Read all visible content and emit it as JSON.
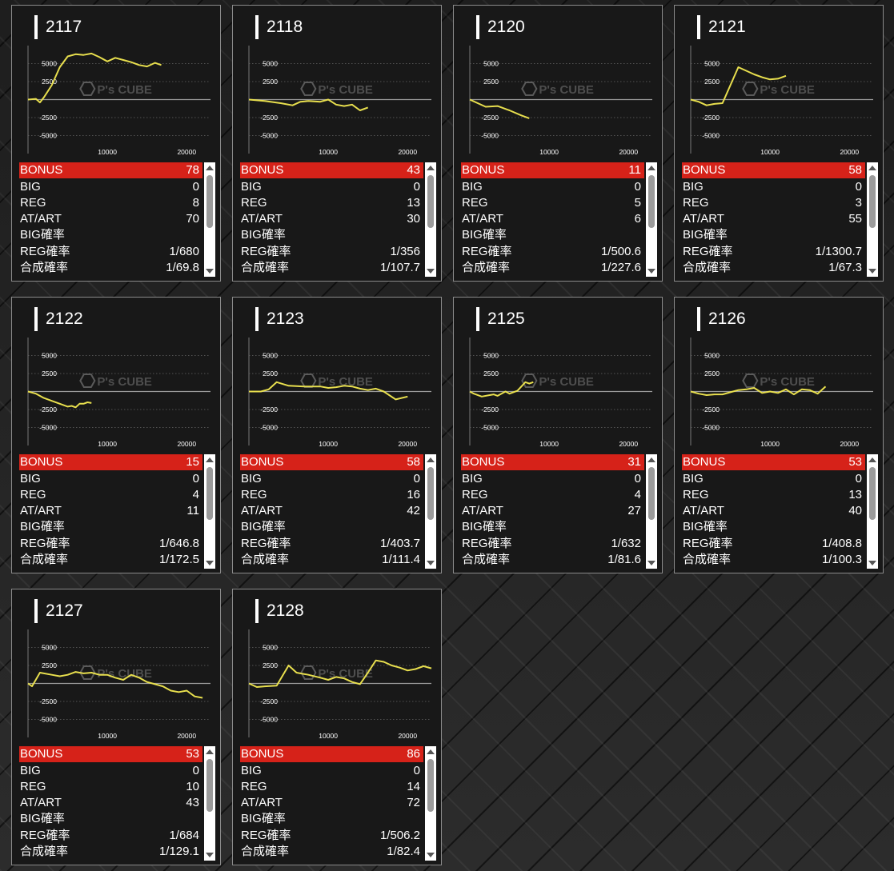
{
  "colors": {
    "line": "#e8df4e",
    "bonus_bg": "#d62219"
  },
  "stat_labels": {
    "bonus": "BONUS",
    "big": "BIG",
    "reg": "REG",
    "at": "AT/ART",
    "big_rate": "BIG確率",
    "reg_rate": "REG確率",
    "total_rate": "合成確率"
  },
  "machines": [
    {
      "id": "2117",
      "bonus": "78",
      "big": "0",
      "reg": "8",
      "at": "70",
      "big_rate": "",
      "reg_rate": "1/680",
      "total_rate": "1/69.8"
    },
    {
      "id": "2118",
      "bonus": "43",
      "big": "0",
      "reg": "13",
      "at": "30",
      "big_rate": "",
      "reg_rate": "1/356",
      "total_rate": "1/107.7"
    },
    {
      "id": "2120",
      "bonus": "11",
      "big": "0",
      "reg": "5",
      "at": "6",
      "big_rate": "",
      "reg_rate": "1/500.6",
      "total_rate": "1/227.6"
    },
    {
      "id": "2121",
      "bonus": "58",
      "big": "0",
      "reg": "3",
      "at": "55",
      "big_rate": "",
      "reg_rate": "1/1300.7",
      "total_rate": "1/67.3"
    },
    {
      "id": "2122",
      "bonus": "15",
      "big": "0",
      "reg": "4",
      "at": "11",
      "big_rate": "",
      "reg_rate": "1/646.8",
      "total_rate": "1/172.5"
    },
    {
      "id": "2123",
      "bonus": "58",
      "big": "0",
      "reg": "16",
      "at": "42",
      "big_rate": "",
      "reg_rate": "1/403.7",
      "total_rate": "1/111.4"
    },
    {
      "id": "2125",
      "bonus": "31",
      "big": "0",
      "reg": "4",
      "at": "27",
      "big_rate": "",
      "reg_rate": "1/632",
      "total_rate": "1/81.6"
    },
    {
      "id": "2126",
      "bonus": "53",
      "big": "0",
      "reg": "13",
      "at": "40",
      "big_rate": "",
      "reg_rate": "1/408.8",
      "total_rate": "1/100.3"
    },
    {
      "id": "2127",
      "bonus": "53",
      "big": "0",
      "reg": "10",
      "at": "43",
      "big_rate": "",
      "reg_rate": "1/684",
      "total_rate": "1/129.1"
    },
    {
      "id": "2128",
      "bonus": "86",
      "big": "0",
      "reg": "14",
      "at": "72",
      "big_rate": "",
      "reg_rate": "1/506.2",
      "total_rate": "1/82.4"
    }
  ],
  "chart_data": [
    {
      "type": "line",
      "title": "2117",
      "xlim": [
        0,
        23000
      ],
      "ylim": [
        -7500,
        7500
      ],
      "yticks": [
        5000,
        2500,
        -2500,
        -5000
      ],
      "xticks": [
        10000,
        20000
      ],
      "watermark": "P's CUBE",
      "x": [
        0,
        1000,
        1500,
        2000,
        3000,
        4000,
        5000,
        6000,
        7000,
        8000,
        9000,
        10000,
        11000,
        12000,
        13000,
        14000,
        15000,
        16000,
        16800
      ],
      "y": [
        0,
        100,
        -400,
        300,
        2000,
        4500,
        6000,
        6300,
        6200,
        6400,
        5900,
        5300,
        5800,
        5500,
        5200,
        4800,
        4600,
        5100,
        4800
      ]
    },
    {
      "type": "line",
      "title": "2118",
      "xlim": [
        0,
        23000
      ],
      "ylim": [
        -7500,
        7500
      ],
      "yticks": [
        5000,
        2500,
        -2500,
        -5000
      ],
      "xticks": [
        10000,
        20000
      ],
      "watermark": "P's CUBE",
      "x": [
        0,
        2000,
        4000,
        5500,
        6500,
        7500,
        9000,
        10000,
        11000,
        12000,
        13000,
        14000,
        15000
      ],
      "y": [
        0,
        -200,
        -500,
        -800,
        -300,
        -200,
        -300,
        0,
        -700,
        -900,
        -700,
        -1500,
        -1100
      ]
    },
    {
      "type": "line",
      "title": "2120",
      "xlim": [
        0,
        23000
      ],
      "ylim": [
        -7500,
        7500
      ],
      "yticks": [
        5000,
        2500,
        -2500,
        -5000
      ],
      "xticks": [
        10000,
        20000
      ],
      "watermark": "P's CUBE",
      "x": [
        0,
        1000,
        2000,
        3500,
        5000,
        6500,
        7500
      ],
      "y": [
        0,
        -500,
        -1000,
        -900,
        -1500,
        -2200,
        -2600
      ]
    },
    {
      "type": "line",
      "title": "2121",
      "xlim": [
        0,
        23000
      ],
      "ylim": [
        -7500,
        7500
      ],
      "yticks": [
        5000,
        2500,
        -2500,
        -5000
      ],
      "xticks": [
        10000,
        20000
      ],
      "watermark": "P's CUBE",
      "x": [
        0,
        1000,
        2000,
        3000,
        4000,
        5000,
        6000,
        7000,
        8000,
        9000,
        10000,
        11000,
        12000
      ],
      "y": [
        0,
        -300,
        -800,
        -600,
        -500,
        2000,
        4500,
        4000,
        3500,
        3100,
        2800,
        2900,
        3300
      ]
    },
    {
      "type": "line",
      "title": "2122",
      "xlim": [
        0,
        23000
      ],
      "ylim": [
        -7500,
        7500
      ],
      "yticks": [
        5000,
        2500,
        -2500,
        -5000
      ],
      "xticks": [
        10000,
        20000
      ],
      "watermark": "P's CUBE",
      "x": [
        0,
        1000,
        2000,
        3000,
        4000,
        5000,
        5500,
        6000,
        6500,
        7000,
        7500,
        8000
      ],
      "y": [
        0,
        -300,
        -900,
        -1300,
        -1700,
        -2100,
        -2000,
        -2200,
        -1700,
        -1700,
        -1500,
        -1600
      ]
    },
    {
      "type": "line",
      "title": "2123",
      "xlim": [
        0,
        23000
      ],
      "ylim": [
        -7500,
        7500
      ],
      "yticks": [
        5000,
        2500,
        -2500,
        -5000
      ],
      "xticks": [
        10000,
        20000
      ],
      "watermark": "P's CUBE",
      "x": [
        0,
        1500,
        2500,
        3500,
        5000,
        7000,
        9000,
        10000,
        11000,
        12000,
        13000,
        14000,
        15000,
        16000,
        17000,
        18500,
        20000
      ],
      "y": [
        0,
        0,
        300,
        1300,
        800,
        700,
        700,
        500,
        600,
        800,
        700,
        400,
        200,
        400,
        0,
        -1100,
        -700
      ]
    },
    {
      "type": "line",
      "title": "2125",
      "xlim": [
        0,
        23000
      ],
      "ylim": [
        -7500,
        7500
      ],
      "yticks": [
        5000,
        2500,
        -2500,
        -5000
      ],
      "xticks": [
        10000,
        20000
      ],
      "watermark": "P's CUBE",
      "x": [
        0,
        500,
        1500,
        2500,
        3000,
        3500,
        4500,
        5000,
        6000,
        7000,
        7500,
        8000
      ],
      "y": [
        0,
        -300,
        -700,
        -500,
        -400,
        -600,
        0,
        -300,
        100,
        1300,
        1100,
        1300
      ]
    },
    {
      "type": "line",
      "title": "2126",
      "xlim": [
        0,
        23000
      ],
      "ylim": [
        -7500,
        7500
      ],
      "yticks": [
        5000,
        2500,
        -2500,
        -5000
      ],
      "xticks": [
        10000,
        20000
      ],
      "watermark": "P's CUBE",
      "x": [
        0,
        1000,
        2000,
        3000,
        4000,
        5000,
        6000,
        7000,
        8000,
        9000,
        10000,
        11000,
        12000,
        13000,
        14000,
        15000,
        16000,
        17000
      ],
      "y": [
        0,
        -300,
        -500,
        -400,
        -400,
        -100,
        200,
        300,
        500,
        -200,
        0,
        -200,
        300,
        -400,
        300,
        200,
        -300,
        700
      ]
    },
    {
      "type": "line",
      "title": "2127",
      "xlim": [
        0,
        23000
      ],
      "ylim": [
        -7500,
        7500
      ],
      "yticks": [
        5000,
        2500,
        -2500,
        -5000
      ],
      "xticks": [
        10000,
        20000
      ],
      "watermark": "P's CUBE",
      "x": [
        0,
        500,
        1500,
        3000,
        4000,
        5000,
        6000,
        7000,
        8000,
        9000,
        10000,
        11000,
        12000,
        13000,
        14000,
        15000,
        16000,
        17000,
        18000,
        19000,
        20000,
        21000,
        22000
      ],
      "y": [
        0,
        -400,
        1500,
        1200,
        1000,
        1200,
        1600,
        1400,
        1500,
        1200,
        1200,
        800,
        500,
        1200,
        800,
        200,
        -100,
        -400,
        -1000,
        -1200,
        -1000,
        -1800,
        -2000
      ]
    },
    {
      "type": "line",
      "title": "2128",
      "xlim": [
        0,
        23000
      ],
      "ylim": [
        -7500,
        7500
      ],
      "yticks": [
        5000,
        2500,
        -2500,
        -5000
      ],
      "xticks": [
        10000,
        20000
      ],
      "watermark": "P's CUBE",
      "x": [
        0,
        1000,
        2000,
        3500,
        5000,
        6000,
        7500,
        9000,
        10000,
        11000,
        12000,
        13000,
        14000,
        15000,
        16000,
        17000,
        18000,
        19000,
        20000,
        21000,
        22000,
        23000
      ],
      "y": [
        0,
        -500,
        -400,
        -300,
        2500,
        1500,
        1200,
        800,
        500,
        900,
        700,
        200,
        -100,
        1500,
        3200,
        3000,
        2500,
        2200,
        1800,
        2000,
        2400,
        2100
      ]
    }
  ]
}
